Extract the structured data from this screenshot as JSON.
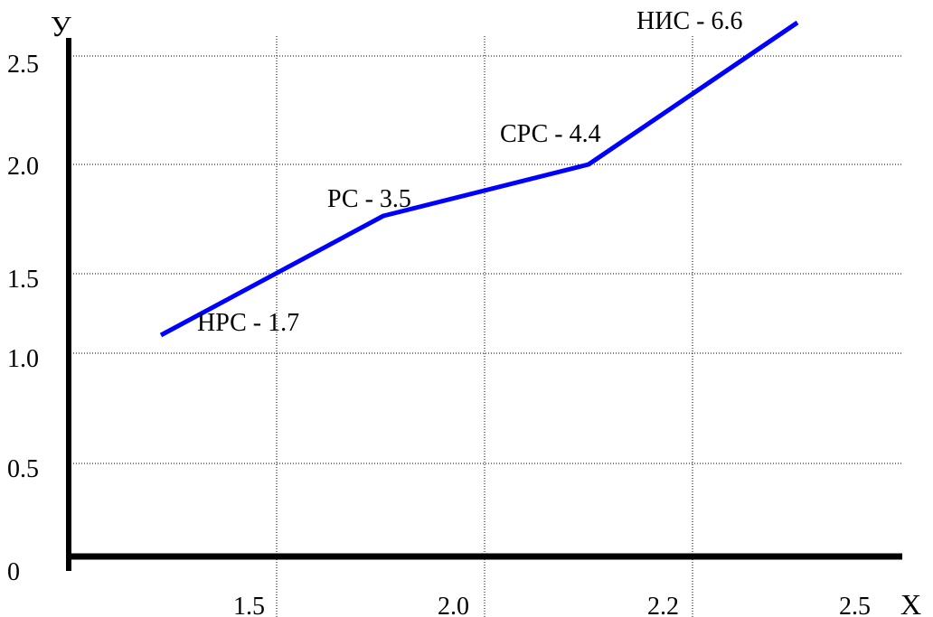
{
  "chart_data": {
    "type": "line",
    "xlabel": "X",
    "ylabel": "У",
    "origin_label": "0",
    "x_ticks": [
      "1.5",
      "2.0",
      "2.2",
      "2.5"
    ],
    "y_ticks": [
      "0.5",
      "1.0",
      "1.5",
      "2.0",
      "2.5"
    ],
    "grid": true,
    "series": [
      {
        "color": "#0000ff",
        "points": [
          {
            "x": 1.25,
            "y": 1.12,
            "label": "НРС - 1.7"
          },
          {
            "x": 1.76,
            "y": 1.75,
            "label": "РС - 3.5"
          },
          {
            "x": 2.13,
            "y": 2.0,
            "label": "СРС - 4.4"
          },
          {
            "x": 2.43,
            "y": 2.67,
            "label": "НИС - 6.6"
          }
        ]
      }
    ]
  }
}
